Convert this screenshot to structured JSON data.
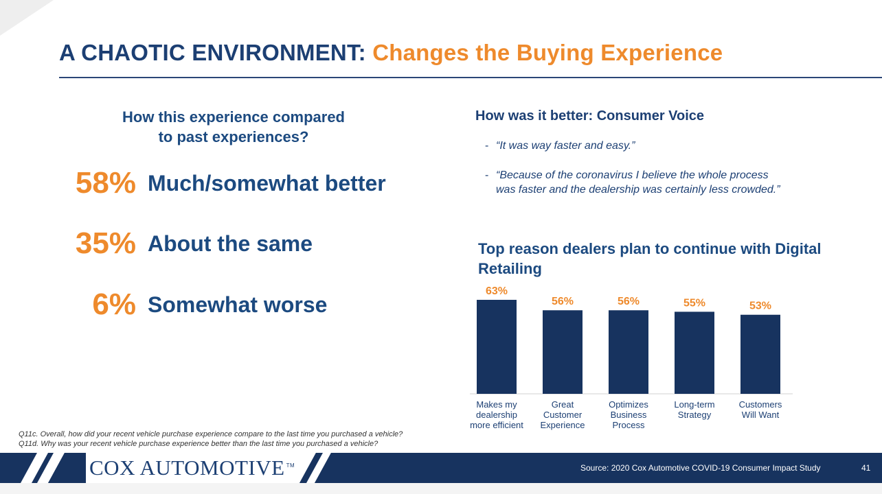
{
  "header": {
    "title_main": "A CHAOTIC ENVIRONMENT:",
    "title_accent": "Changes the Buying Experience"
  },
  "comparison": {
    "heading_line1": "How this experience compared",
    "heading_line2": "to past experiences?",
    "stats": [
      {
        "pct": "58%",
        "label": "Much/somewhat better"
      },
      {
        "pct": "35%",
        "label": "About the same"
      },
      {
        "pct": "6%",
        "label": "Somewhat worse"
      }
    ]
  },
  "consumer_voice": {
    "heading": "How was it better: Consumer Voice",
    "dash": "-",
    "quotes": [
      "“It was way faster and easy.”",
      "“Because of the coronavirus I believe the whole process was faster and the dealership was certainly less crowded.”"
    ]
  },
  "chart_data": {
    "type": "bar",
    "title": "Top reason dealers plan to continue with Digital Retailing",
    "categories": [
      [
        "Makes my",
        "dealership",
        "more efficient"
      ],
      [
        "Great",
        "Customer",
        "Experience"
      ],
      [
        "Optimizes",
        "Business",
        "Process"
      ],
      [
        "Long-term",
        "Strategy"
      ],
      [
        "Customers",
        "Will Want"
      ]
    ],
    "values": [
      63,
      56,
      56,
      55,
      53
    ],
    "value_labels": [
      "63%",
      "56%",
      "56%",
      "55%",
      "53%"
    ],
    "ylim": [
      0,
      63
    ],
    "grid": false,
    "bar_color": "#17335f",
    "label_color": "#ee8a2c"
  },
  "footnotes": [
    "Q11c. Overall, how did your recent vehicle purchase experience compare to the last time you purchased a vehicle?",
    "Q11d. Why was your recent vehicle purchase experience better than the last time you purchased a vehicle?"
  ],
  "footer": {
    "logo_text": "COX AUTOMOTIVE",
    "logo_tm": "TM",
    "source": "Source: 2020 Cox Automotive COVID-19 Consumer Impact Study",
    "page_number": "41"
  },
  "colors": {
    "navy": "#1c3f73",
    "orange": "#ee8a2c",
    "bar": "#17335f"
  }
}
